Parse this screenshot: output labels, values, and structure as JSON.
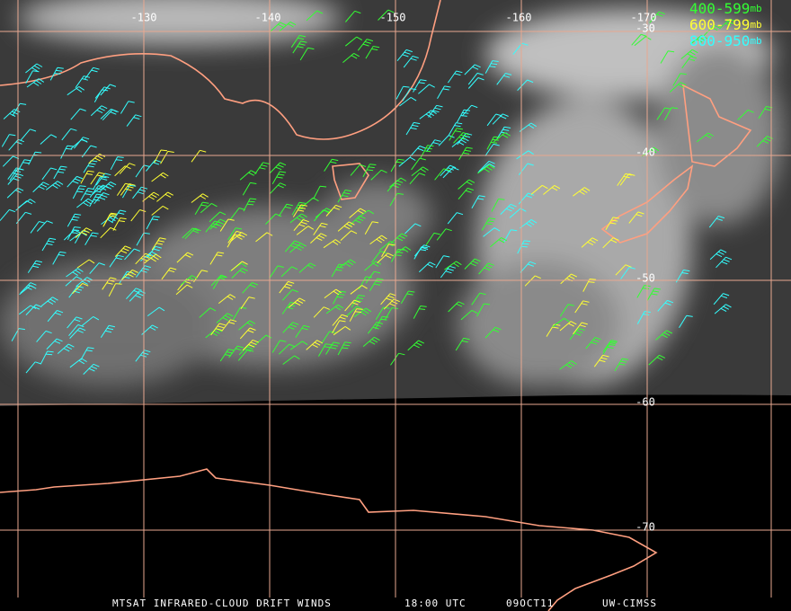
{
  "map": {
    "longitude_labels": [
      "-130",
      "-140",
      "-150",
      "-160",
      "-170"
    ],
    "latitude_labels": [
      "-30",
      "-40",
      "-50",
      "-60",
      "-70"
    ],
    "legend": [
      {
        "range": "400-599",
        "unit": "mb",
        "color": "#33ff33"
      },
      {
        "range": "600-799",
        "unit": "mb",
        "color": "#ffff33"
      },
      {
        "range": "800-950",
        "unit": "mb",
        "color": "#33ffff"
      }
    ],
    "footer": [
      "MTSAT INFRARED-CLOUD DRIFT WINDS",
      "18:00 UTC",
      "09OCT11",
      "UW-CIMSS"
    ]
  }
}
